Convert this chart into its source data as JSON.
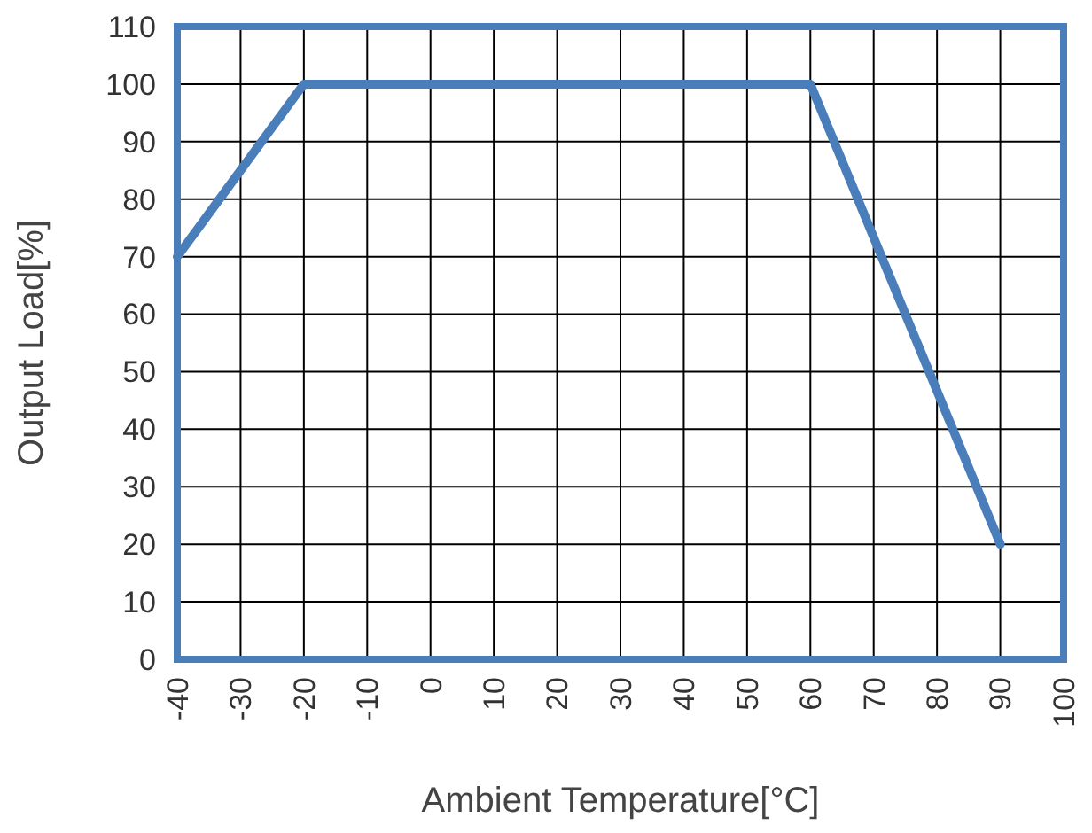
{
  "chart_data": {
    "type": "line",
    "xlabel": "Ambient Temperature[°C]",
    "ylabel": "Output Load[%]",
    "x": [
      -40,
      -20,
      60,
      90
    ],
    "series": [
      {
        "color": "#4a7ebb",
        "values": [
          70,
          100,
          100,
          20
        ]
      }
    ],
    "xlim": [
      -40,
      100
    ],
    "xticks": [
      -40,
      -30,
      -20,
      -10,
      0,
      10,
      20,
      30,
      40,
      50,
      60,
      70,
      80,
      90,
      100
    ],
    "ylim": [
      0,
      110
    ],
    "yticks": [
      0,
      10,
      20,
      30,
      40,
      50,
      60,
      70,
      80,
      90,
      100,
      110
    ],
    "grid": true,
    "marker": "none",
    "line_style": "solid"
  }
}
